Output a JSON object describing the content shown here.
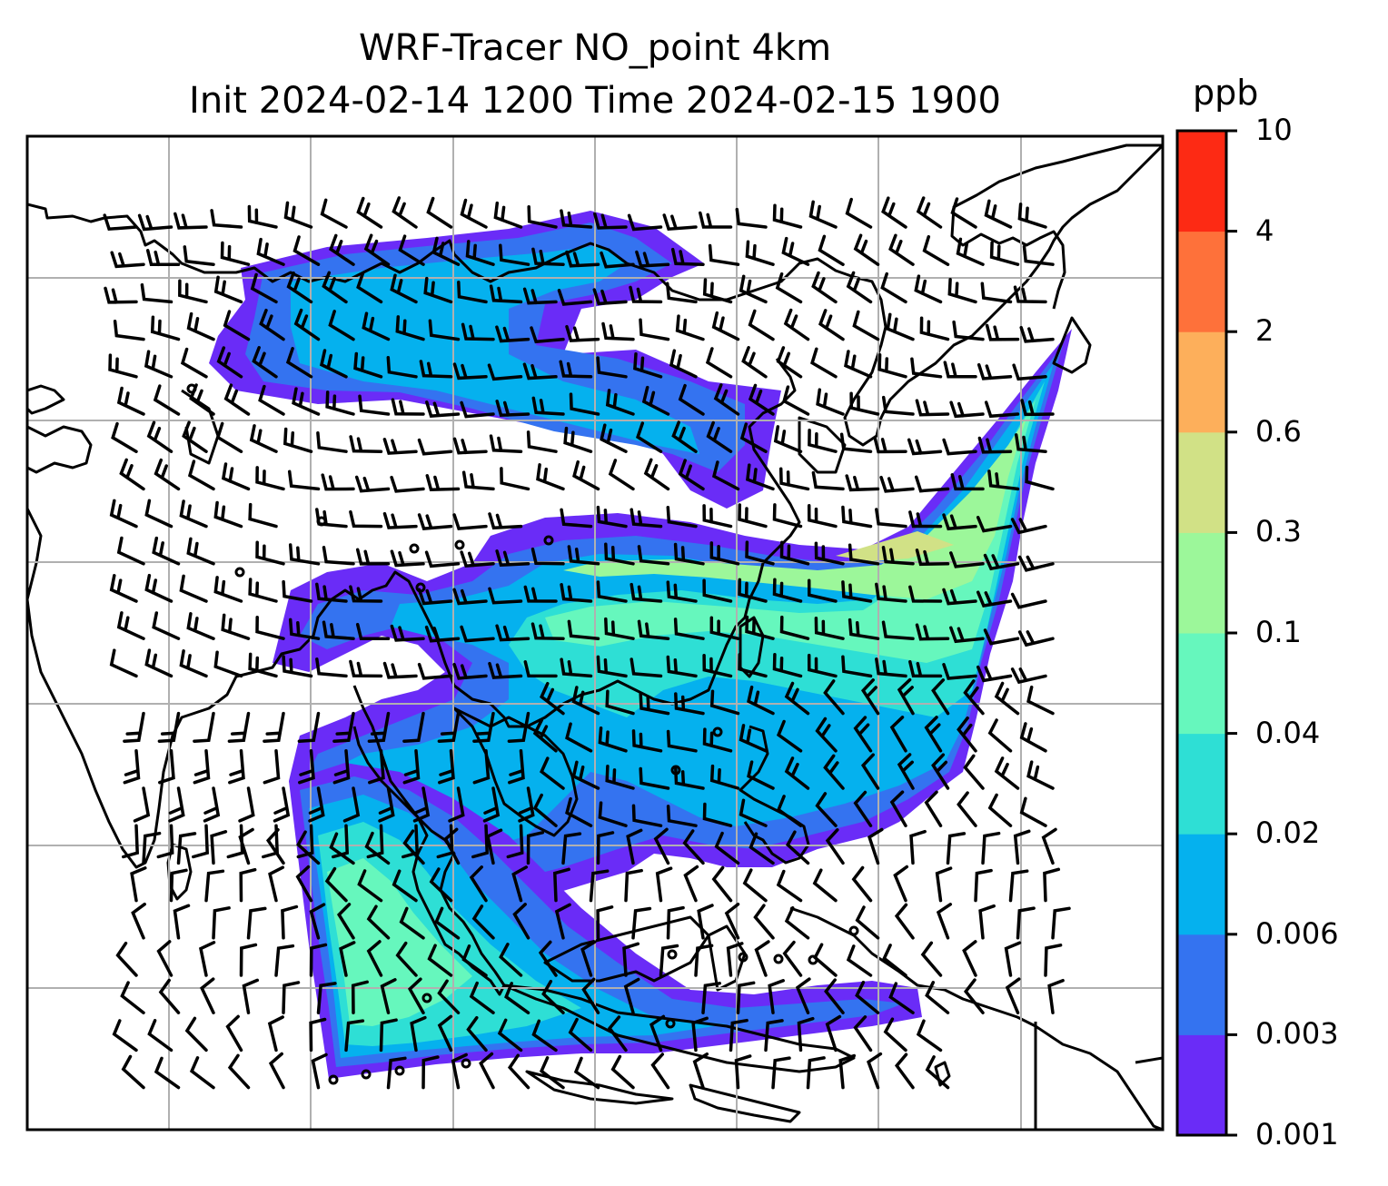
{
  "title": {
    "line1": "WRF-Tracer NO_point 4km",
    "line2": "Init 2024-02-14 1200 Time 2024-02-15 1900"
  },
  "colorbar": {
    "unit": "ppb",
    "tick_labels": [
      "0.001",
      "0.003",
      "0.006",
      "0.02",
      "0.04",
      "0.1",
      "0.3",
      "0.6",
      "2",
      "4",
      "10"
    ],
    "colors": [
      "#6a2cf7",
      "#3473f0",
      "#05b1ee",
      "#2edfd5",
      "#66f7bd",
      "#9cf79a",
      "#d1e186",
      "#fdaf5b",
      "#fe713a",
      "#fd2a14"
    ]
  },
  "map": {
    "plume_colors": {
      "edge": "#6a2cf7",
      "low": "#3473f0",
      "mid": "#05b1ee",
      "cyan": "#2edfd5",
      "aqua": "#66f7bd",
      "green": "#9cf79a",
      "yellow": "#d1e186"
    },
    "gridline_color": "#b0b0b0",
    "coastline_color": "#000000"
  }
}
